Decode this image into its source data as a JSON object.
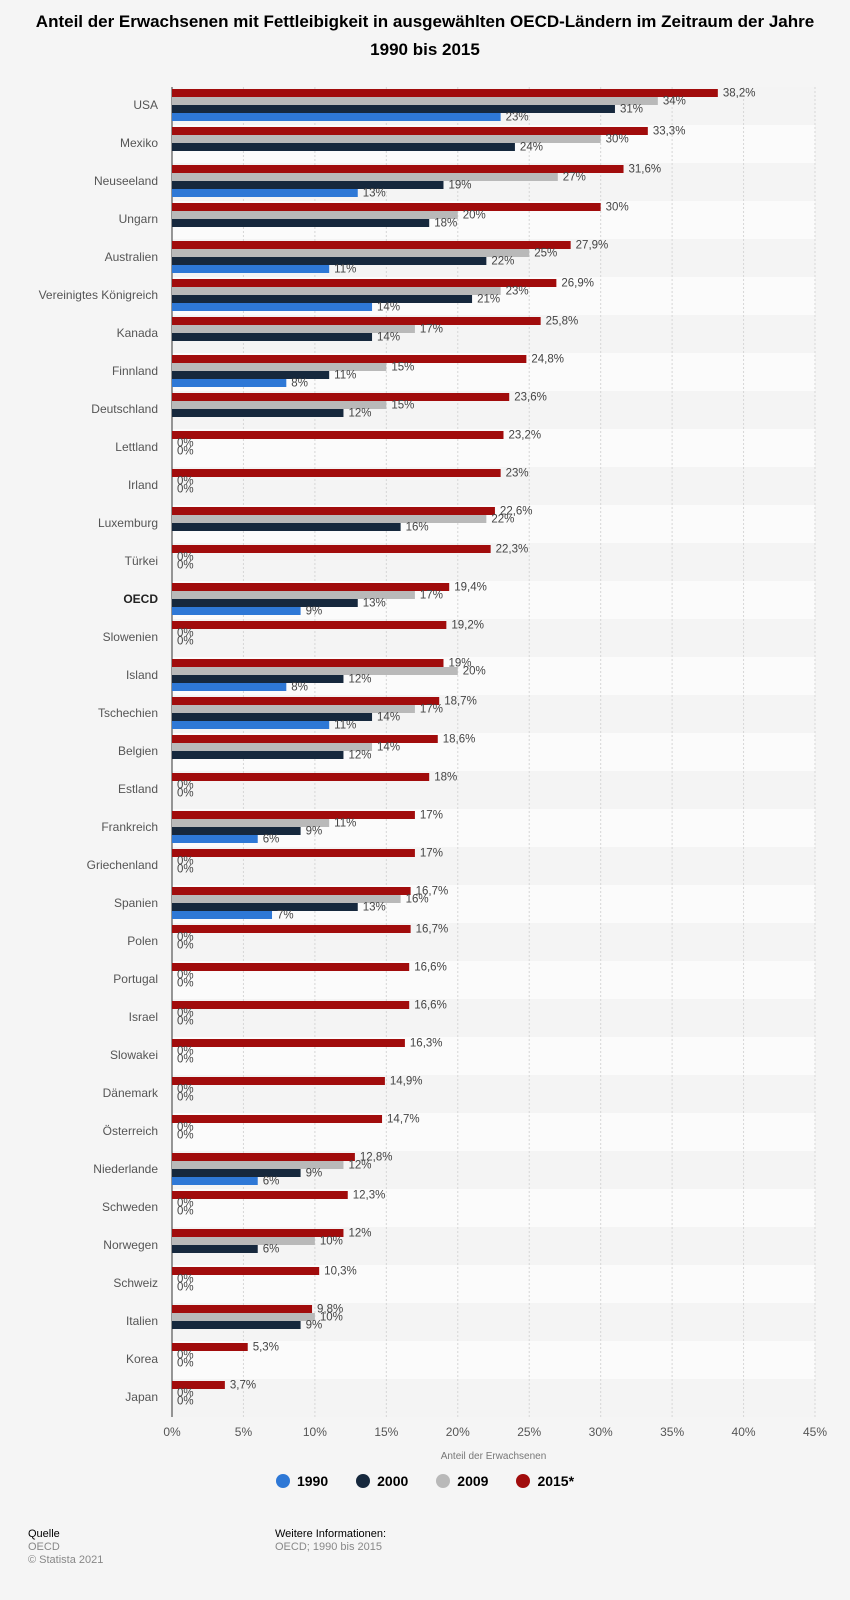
{
  "chart_data": {
    "type": "bar",
    "orientation": "horizontal",
    "title": "Anteil der Erwachsenen mit Fettleibigkeit in ausgewählten OECD-Ländern im Zeitraum der Jahre 1990 bis 2015",
    "xlabel": "Anteil der Erwachsenen",
    "ylabel": "",
    "xlim": [
      0,
      45
    ],
    "xticks": [
      "0%",
      "5%",
      "10%",
      "15%",
      "20%",
      "25%",
      "30%",
      "35%",
      "40%",
      "45%"
    ],
    "grid": true,
    "legend_position": "bottom",
    "categories": [
      "USA",
      "Mexiko",
      "Neuseeland",
      "Ungarn",
      "Australien",
      "Vereinigtes Königreich",
      "Kanada",
      "Finnland",
      "Deutschland",
      "Lettland",
      "Irland",
      "Luxemburg",
      "Türkei",
      "OECD",
      "Slowenien",
      "Island",
      "Tschechien",
      "Belgien",
      "Estland",
      "Frankreich",
      "Griechenland",
      "Spanien",
      "Polen",
      "Portugal",
      "Israel",
      "Slowakei",
      "Dänemark",
      "Österreich",
      "Niederlande",
      "Schweden",
      "Norwegen",
      "Schweiz",
      "Italien",
      "Korea",
      "Japan"
    ],
    "highlight_category": "OECD",
    "series": [
      {
        "name": "2015*",
        "color": "#a10c0c",
        "values": [
          38.2,
          33.3,
          31.6,
          30,
          27.9,
          26.9,
          25.8,
          24.8,
          23.6,
          23.2,
          23,
          22.6,
          22.3,
          19.4,
          19.2,
          19,
          18.7,
          18.6,
          18,
          17,
          17,
          16.7,
          16.7,
          16.6,
          16.6,
          16.3,
          14.9,
          14.7,
          12.8,
          12.3,
          12,
          10.3,
          9.8,
          5.3,
          3.7
        ],
        "labels": [
          "38,2%",
          "33,3%",
          "31,6%",
          "30%",
          "27,9%",
          "26,9%",
          "25,8%",
          "24,8%",
          "23,6%",
          "23,2%",
          "23%",
          "22,6%",
          "22,3%",
          "19,4%",
          "19,2%",
          "19%",
          "18,7%",
          "18,6%",
          "18%",
          "17%",
          "17%",
          "16,7%",
          "16,7%",
          "16,6%",
          "16,6%",
          "16,3%",
          "14,9%",
          "14,7%",
          "12,8%",
          "12,3%",
          "12%",
          "10,3%",
          "9,8%",
          "5,3%",
          "3,7%"
        ]
      },
      {
        "name": "2009",
        "color": "#b9b9b9",
        "values": [
          34,
          30,
          27,
          20,
          25,
          23,
          17,
          15,
          15,
          0,
          0,
          22,
          0,
          17,
          0,
          20,
          17,
          14,
          0,
          11,
          0,
          16,
          0,
          0,
          0,
          0,
          0,
          0,
          12,
          0,
          10,
          0,
          10,
          0,
          0
        ],
        "labels": [
          "34%",
          "30%",
          "27%",
          "20%",
          "25%",
          "23%",
          "17%",
          "15%",
          "15%",
          "0%",
          "0%",
          "22%",
          "0%",
          "17%",
          "0%",
          "20%",
          "17%",
          "14%",
          "0%",
          "11%",
          "0%",
          "16%",
          "0%",
          "0%",
          "0%",
          "0%",
          "0%",
          "0%",
          "12%",
          "0%",
          "10%",
          "0%",
          "10%",
          "0%",
          "0%"
        ]
      },
      {
        "name": "2000",
        "color": "#16283d",
        "values": [
          31,
          24,
          19,
          18,
          22,
          21,
          14,
          11,
          12,
          0,
          0,
          16,
          0,
          13,
          0,
          12,
          14,
          12,
          0,
          9,
          0,
          13,
          0,
          0,
          0,
          0,
          0,
          0,
          9,
          0,
          6,
          0,
          9,
          0,
          0
        ],
        "labels": [
          "31%",
          "24%",
          "19%",
          "18%",
          "22%",
          "21%",
          "14%",
          "11%",
          "12%",
          "0%",
          "0%",
          "16%",
          "0%",
          "13%",
          "0%",
          "12%",
          "14%",
          "12%",
          "0%",
          "9%",
          "0%",
          "13%",
          "0%",
          "0%",
          "0%",
          "0%",
          "0%",
          "0%",
          "9%",
          "0%",
          "6%",
          "0%",
          "9%",
          "0%",
          "0%"
        ]
      },
      {
        "name": "1990",
        "color": "#2e78d6",
        "values": [
          23,
          null,
          13,
          null,
          11,
          14,
          null,
          8,
          null,
          null,
          null,
          null,
          null,
          9,
          null,
          8,
          11,
          null,
          null,
          6,
          null,
          7,
          null,
          null,
          null,
          null,
          null,
          null,
          6,
          null,
          null,
          null,
          null,
          null,
          null
        ],
        "labels": [
          "23%",
          "",
          "13%",
          "",
          "11%",
          "14%",
          "",
          "8%",
          "",
          "",
          "",
          "",
          "",
          "9%",
          "",
          "8%",
          "11%",
          "",
          "",
          "6%",
          "",
          "7%",
          "",
          "",
          "",
          "",
          "",
          "",
          "6%",
          "",
          "",
          "",
          "",
          "",
          ""
        ]
      }
    ],
    "legend": [
      {
        "name": "1990",
        "color": "#2e78d6"
      },
      {
        "name": "2000",
        "color": "#16283d"
      },
      {
        "name": "2009",
        "color": "#b9b9b9"
      },
      {
        "name": "2015*",
        "color": "#a10c0c"
      }
    ]
  },
  "footer": {
    "source_heading": "Quelle",
    "source_value": "OECD",
    "copyright": "© Statista 2021",
    "info_heading": "Weitere Informationen:",
    "info_value": "OECD; 1990 bis 2015"
  }
}
